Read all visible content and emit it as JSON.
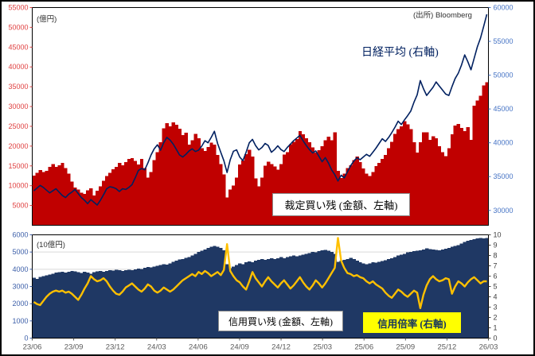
{
  "header": {
    "source_note": "(出所)  Bloomberg"
  },
  "colors": {
    "arb_bar": "#C00000",
    "nikkei_line": "#002060",
    "margin_bar": "#1F3864",
    "ratio_line": "#FFC000",
    "grid": "#D9D9D9",
    "frame": "#000000",
    "x_label": "#595959",
    "ratio_label_bg": "#FFFF00"
  },
  "chart_data": [
    {
      "type": "bar",
      "id": "arbitrage-vs-nikkei",
      "unit_label": "(億円)",
      "bar_series_label": "裁定買い残 (金額、左軸)",
      "line_series_label": "日経平均 (右軸)",
      "legend_position": "inside",
      "grid": false,
      "left_axis": {
        "min": 0,
        "max": 55000,
        "color": "#E04040",
        "ticks": [
          5000,
          10000,
          15000,
          20000,
          25000,
          30000,
          35000,
          40000,
          45000,
          50000,
          55000
        ]
      },
      "right_axis": {
        "min": 27800,
        "max": 60000,
        "color": "#4472C4",
        "ticks": [
          30000,
          35000,
          40000,
          45000,
          50000,
          55000,
          60000
        ]
      },
      "x_tick_labels": [],
      "bars": [
        12500,
        13200,
        14000,
        13400,
        13800,
        14800,
        15500,
        14800,
        15200,
        15800,
        14500,
        13000,
        11000,
        9500,
        9000,
        8200,
        7900,
        8800,
        9300,
        7500,
        8700,
        9800,
        11200,
        12400,
        13200,
        14200,
        14800,
        15800,
        15200,
        16000,
        16800,
        17000,
        16300,
        15400,
        16800,
        14500,
        12000,
        13500,
        16500,
        18500,
        21000,
        24500,
        25800,
        25000,
        26000,
        25400,
        24400,
        22800,
        23400,
        20400,
        21500,
        23100,
        22000,
        19500,
        18800,
        19800,
        20900,
        20400,
        17800,
        15500,
        12800,
        7000,
        9000,
        10000,
        12000,
        15400,
        16400,
        18000,
        19100,
        17400,
        11800,
        9800,
        12000,
        15100,
        16100,
        15500,
        14900,
        14100,
        15500,
        17900,
        18500,
        20500,
        21100,
        21800,
        23800,
        23000,
        22000,
        21000,
        19700,
        18400,
        19000,
        20000,
        21500,
        22400,
        21500,
        23500,
        13800,
        11900,
        13000,
        14500,
        15200,
        16500,
        17400,
        16000,
        14400,
        13000,
        12400,
        13500,
        15000,
        15800,
        16800,
        17800,
        19500,
        21100,
        23100,
        24300,
        25000,
        26300,
        25500,
        24300,
        21000,
        18400,
        21000,
        23500,
        23500,
        21600,
        22500,
        22000,
        20000,
        18500,
        17500,
        19500,
        23000,
        25200,
        25600,
        24600,
        23800,
        24800,
        21600,
        30200,
        31500,
        32700,
        35300,
        36100
      ],
      "line": [
        32900,
        33300,
        33700,
        33400,
        33000,
        32600,
        32900,
        33200,
        32700,
        32200,
        31900,
        32400,
        32700,
        33100,
        32500,
        31900,
        31500,
        31000,
        31600,
        31200,
        30800,
        31500,
        32300,
        33200,
        33500,
        33400,
        33200,
        32800,
        33200,
        33100,
        33400,
        33800,
        34800,
        35900,
        36200,
        36000,
        37000,
        38200,
        39100,
        39700,
        38900,
        40000,
        40800,
        40400,
        39800,
        39000,
        38200,
        37900,
        38300,
        38800,
        39100,
        38700,
        38900,
        39500,
        40300,
        40000,
        40800,
        41700,
        39900,
        38600,
        37350,
        35600,
        37500,
        38750,
        38950,
        37900,
        37350,
        38600,
        40000,
        40500,
        39600,
        38950,
        39300,
        39900,
        39600,
        38600,
        39000,
        39550,
        39000,
        38700,
        39300,
        39800,
        40300,
        40700,
        41100,
        40300,
        39600,
        39000,
        38500,
        38800,
        38000,
        37200,
        37800,
        37000,
        36000,
        35300,
        34350,
        35200,
        34800,
        35700,
        36600,
        37300,
        37800,
        37500,
        37900,
        38300,
        38000,
        38600,
        39200,
        39900,
        40600,
        40200,
        40800,
        41500,
        42300,
        43200,
        42700,
        43400,
        44000,
        44700,
        46000,
        47100,
        49200,
        48000,
        47000,
        47600,
        48200,
        49000,
        48400,
        47800,
        47200,
        47000,
        48300,
        49500,
        50300,
        51500,
        53000,
        52000,
        50800,
        52500,
        54200,
        55500,
        57200,
        59000
      ]
    },
    {
      "type": "bar",
      "id": "margin-balance-vs-ratio",
      "unit_label": "(10億円)",
      "bar_series_label": "信用買い残 (金額、左軸)",
      "line_series_label": "信用倍率 (右軸)",
      "legend_position": "inside",
      "grid": true,
      "left_axis": {
        "min": 0,
        "max": 6000,
        "color": "#3B5EA8",
        "ticks": [
          0,
          1000,
          2000,
          3000,
          4000,
          5000,
          6000
        ]
      },
      "right_axis": {
        "min": 0,
        "max": 10,
        "color": "#404040",
        "ticks": [
          0,
          1,
          2,
          3,
          4,
          5,
          6,
          7,
          8,
          9,
          10
        ]
      },
      "x_tick_labels": [
        "23/06",
        "23/09",
        "23/12",
        "24/03",
        "24/06",
        "24/09",
        "24/12",
        "25/03",
        "25/06",
        "25/09",
        "25/12",
        "26/03"
      ],
      "bars": [
        3500,
        3450,
        3550,
        3600,
        3650,
        3700,
        3750,
        3800,
        3830,
        3850,
        3800,
        3850,
        3900,
        3870,
        3820,
        3780,
        3850,
        3800,
        3750,
        3820,
        3880,
        3900,
        3850,
        3900,
        3950,
        3920,
        3970,
        3940,
        3900,
        3950,
        3980,
        3950,
        4000,
        4050,
        4020,
        4080,
        4120,
        4100,
        4150,
        4200,
        4250,
        4300,
        4280,
        4350,
        4430,
        4500,
        4560,
        4600,
        4660,
        4700,
        4800,
        4900,
        5000,
        5080,
        5150,
        5250,
        5300,
        5350,
        5300,
        5250,
        5100,
        4300,
        4060,
        4150,
        4250,
        4350,
        4300,
        4400,
        4450,
        4400,
        4500,
        4550,
        4600,
        4550,
        4600,
        4650,
        4600,
        4650,
        4700,
        4650,
        4700,
        4750,
        4800,
        4750,
        4800,
        4850,
        4900,
        4950,
        5000,
        4980,
        5050,
        5100,
        5120,
        5080,
        5000,
        4900,
        4430,
        4500,
        4550,
        4600,
        4660,
        4600,
        4500,
        4400,
        4350,
        4300,
        4350,
        4400,
        4380,
        4430,
        4470,
        4520,
        4600,
        4650,
        4700,
        4800,
        4850,
        4900,
        4980,
        5000,
        5050,
        5080,
        5100,
        5150,
        5215,
        5180,
        5150,
        5120,
        5100,
        5150,
        5200,
        5250,
        5300,
        5350,
        5400,
        5500,
        5590,
        5650,
        5700,
        5750,
        5800,
        5820,
        5800,
        5820
      ],
      "line": [
        3.5,
        3.3,
        3.2,
        3.6,
        4.0,
        4.3,
        4.5,
        4.6,
        4.5,
        4.6,
        4.4,
        4.5,
        4.3,
        4.0,
        3.7,
        4.2,
        4.8,
        5.3,
        6.0,
        5.7,
        5.5,
        5.6,
        5.8,
        5.5,
        5.0,
        4.6,
        4.3,
        4.2,
        4.5,
        4.9,
        5.1,
        5.3,
        5.0,
        4.7,
        4.5,
        4.8,
        5.2,
        5.0,
        4.6,
        4.4,
        4.6,
        4.9,
        4.7,
        4.5,
        4.7,
        5.0,
        5.3,
        5.6,
        5.8,
        6.0,
        6.2,
        6.0,
        6.4,
        6.2,
        6.5,
        6.3,
        6.0,
        6.2,
        6.4,
        6.1,
        6.6,
        9.1,
        6.5,
        6.0,
        5.6,
        5.4,
        5.0,
        4.7,
        5.5,
        6.4,
        5.8,
        5.4,
        5.0,
        5.5,
        5.9,
        5.5,
        5.2,
        4.9,
        5.3,
        5.6,
        5.2,
        4.8,
        5.1,
        5.5,
        5.9,
        5.4,
        5.0,
        4.7,
        5.1,
        5.6,
        5.3,
        4.9,
        5.3,
        5.8,
        6.3,
        6.8,
        9.7,
        7.5,
        6.8,
        6.3,
        6.2,
        6.0,
        6.1,
        5.9,
        5.8,
        5.5,
        5.3,
        5.5,
        5.2,
        5.0,
        4.8,
        4.4,
        4.1,
        3.9,
        4.3,
        4.7,
        4.5,
        4.2,
        4.0,
        4.3,
        4.6,
        4.4,
        2.9,
        4.2,
        5.1,
        5.7,
        6.0,
        5.7,
        5.5,
        5.6,
        5.8,
        5.7,
        4.3,
        5.0,
        5.5,
        5.3,
        5.0,
        5.4,
        5.7,
        5.9,
        5.6,
        5.3,
        5.5,
        5.5
      ]
    }
  ]
}
